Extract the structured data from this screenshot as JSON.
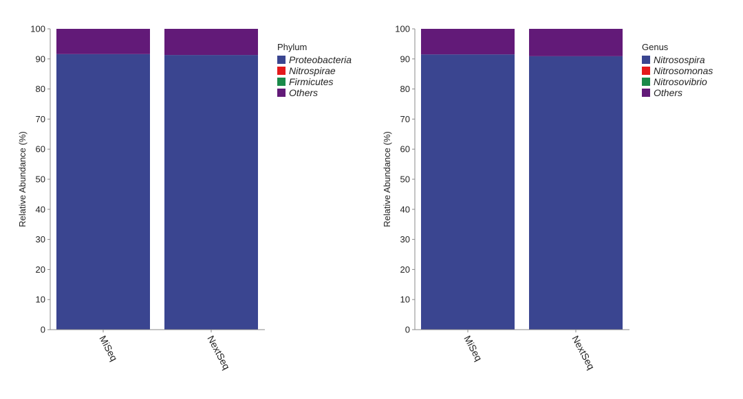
{
  "chart_data": [
    {
      "type": "bar",
      "stacked": true,
      "categories": [
        "MiSeq",
        "NextSeq"
      ],
      "ylabel": "Relative Abundance (%)",
      "ylim": [
        0,
        100
      ],
      "yticks": [
        0,
        10,
        20,
        30,
        40,
        50,
        60,
        70,
        80,
        90,
        100
      ],
      "grid": false,
      "legend_title": "Phylum",
      "legend_position": "right",
      "series": [
        {
          "name": "Proteobacteria",
          "color": "#3a4590",
          "values": [
            91.6,
            91.3
          ]
        },
        {
          "name": "Nitrospirae",
          "color": "#e41a1c",
          "values": [
            0.0,
            0.0
          ]
        },
        {
          "name": "Firmicutes",
          "color": "#1a8a4a",
          "values": [
            0.0,
            0.0
          ]
        },
        {
          "name": "Others",
          "color": "#621a78",
          "values": [
            8.4,
            8.7
          ]
        }
      ]
    },
    {
      "type": "bar",
      "stacked": true,
      "categories": [
        "MiSeq",
        "NextSeq"
      ],
      "ylabel": "Relative Abundance (%)",
      "ylim": [
        0,
        100
      ],
      "yticks": [
        0,
        10,
        20,
        30,
        40,
        50,
        60,
        70,
        80,
        90,
        100
      ],
      "grid": false,
      "legend_title": "Genus",
      "legend_position": "right",
      "series": [
        {
          "name": "Nitrosospira",
          "color": "#3a4590",
          "values": [
            91.5,
            90.9
          ]
        },
        {
          "name": "Nitrosomonas",
          "color": "#e41a1c",
          "values": [
            0.0,
            0.0
          ]
        },
        {
          "name": "Nitrosovibrio",
          "color": "#1a8a4a",
          "values": [
            0.0,
            0.0
          ]
        },
        {
          "name": "Others",
          "color": "#621a78",
          "values": [
            8.5,
            9.1
          ]
        }
      ]
    }
  ]
}
